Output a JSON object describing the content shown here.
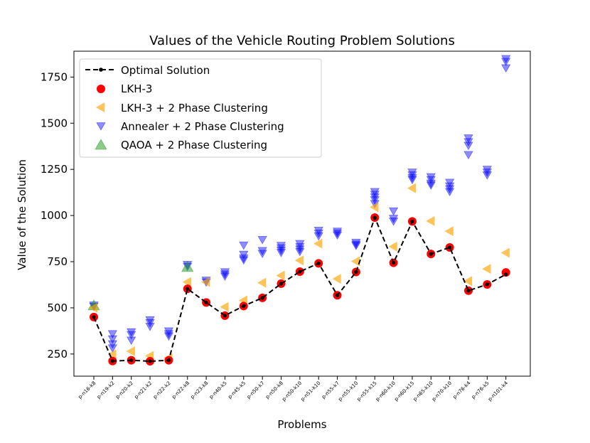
{
  "chart_data": {
    "type": "scatter",
    "title": "Values of the Vehicle Routing Problem Solutions",
    "xlabel": "Problems",
    "ylabel": "Value of the Solution",
    "ylim": [
      130,
      1890
    ],
    "yticks": [
      250,
      500,
      750,
      1000,
      1250,
      1500,
      1750
    ],
    "categories": [
      "p-n16-k8",
      "p-n19-k2",
      "p-n20-k2",
      "p-n21-k2",
      "p-n22-k2",
      "p-n22-k8",
      "p-n23-k8",
      "p-n40-k5",
      "p-n45-k5",
      "p-n50-k7",
      "p-n50-k8",
      "p-n50-k10",
      "p-n51-k10",
      "p-n55-k7",
      "p-n55-k10",
      "p-n55-k15",
      "p-n60-k10",
      "p-n60-k15",
      "p-n65-k10",
      "p-n70-k10",
      "p-n76-k4",
      "p-n76-k5",
      "p-n101-k4"
    ],
    "legend": {
      "placement": "top-left",
      "entries": [
        "Optimal Solution",
        "LKH-3",
        "LKH-3 + 2 Phase Clustering",
        "Annealer + 2 Phase Clustering",
        "QAOA + 2 Phase Clustering"
      ]
    },
    "series": [
      {
        "name": "Optimal Solution",
        "marker": "line-dashed-dot",
        "color": "#000000",
        "values": [
          450,
          212,
          216,
          211,
          216,
          603,
          529,
          458,
          510,
          554,
          631,
          696,
          741,
          568,
          694,
          989,
          744,
          968,
          792,
          827,
          593,
          627,
          681
        ]
      },
      {
        "name": "LKH-3",
        "marker": "circle",
        "color": "#ff0000",
        "values": [
          450,
          212,
          216,
          211,
          216,
          603,
          529,
          458,
          510,
          554,
          631,
          696,
          741,
          568,
          694,
          989,
          744,
          968,
          792,
          827,
          593,
          627,
          692
        ]
      },
      {
        "name": "LKH-3 + 2 Phase Clustering",
        "marker": "triangle-left",
        "color": "#ffa500",
        "values": [
          500,
          248,
          265,
          240,
          228,
          640,
          640,
          505,
          540,
          636,
          675,
          757,
          848,
          657,
          752,
          1045,
          832,
          1148,
          970,
          915,
          645,
          711,
          798
        ]
      },
      {
        "name": "Annealer + 2 Phase Clustering",
        "marker": "triangle-down",
        "color": "#0000ff",
        "points": [
          [
            0,
            515
          ],
          [
            0,
            508
          ],
          [
            1,
            360
          ],
          [
            1,
            332
          ],
          [
            1,
            305
          ],
          [
            1,
            283
          ],
          [
            2,
            370
          ],
          [
            2,
            355
          ],
          [
            2,
            325
          ],
          [
            3,
            435
          ],
          [
            3,
            420
          ],
          [
            3,
            400
          ],
          [
            4,
            375
          ],
          [
            4,
            360
          ],
          [
            4,
            348
          ],
          [
            5,
            735
          ],
          [
            5,
            725
          ],
          [
            6,
            650
          ],
          [
            6,
            640
          ],
          [
            7,
            695
          ],
          [
            7,
            683
          ],
          [
            7,
            672
          ],
          [
            8,
            840
          ],
          [
            8,
            790
          ],
          [
            8,
            770
          ],
          [
            8,
            760
          ],
          [
            9,
            870
          ],
          [
            9,
            810
          ],
          [
            9,
            795
          ],
          [
            10,
            838
          ],
          [
            10,
            825
          ],
          [
            10,
            812
          ],
          [
            10,
            800
          ],
          [
            11,
            848
          ],
          [
            11,
            832
          ],
          [
            11,
            818
          ],
          [
            11,
            805
          ],
          [
            12,
            920
          ],
          [
            12,
            905
          ],
          [
            12,
            890
          ],
          [
            13,
            915
          ],
          [
            13,
            905
          ],
          [
            13,
            895
          ],
          [
            14,
            855
          ],
          [
            14,
            845
          ],
          [
            14,
            838
          ],
          [
            15,
            1130
          ],
          [
            15,
            1115
          ],
          [
            15,
            1100
          ],
          [
            15,
            1085
          ],
          [
            15,
            1065
          ],
          [
            16,
            1025
          ],
          [
            16,
            985
          ],
          [
            16,
            970
          ],
          [
            17,
            1235
          ],
          [
            17,
            1220
          ],
          [
            17,
            1205
          ],
          [
            17,
            1195
          ],
          [
            18,
            1210
          ],
          [
            18,
            1195
          ],
          [
            18,
            1175
          ],
          [
            18,
            1165
          ],
          [
            19,
            1180
          ],
          [
            19,
            1160
          ],
          [
            19,
            1145
          ],
          [
            19,
            1130
          ],
          [
            20,
            1420
          ],
          [
            20,
            1400
          ],
          [
            20,
            1380
          ],
          [
            20,
            1330
          ],
          [
            21,
            1250
          ],
          [
            21,
            1235
          ],
          [
            21,
            1220
          ],
          [
            22,
            1850
          ],
          [
            22,
            1835
          ],
          [
            22,
            1800
          ]
        ]
      },
      {
        "name": "QAOA + 2 Phase Clustering",
        "marker": "triangle-up",
        "color": "#2ca02c",
        "points": [
          [
            0,
            512
          ],
          [
            5,
            720
          ]
        ]
      }
    ]
  }
}
